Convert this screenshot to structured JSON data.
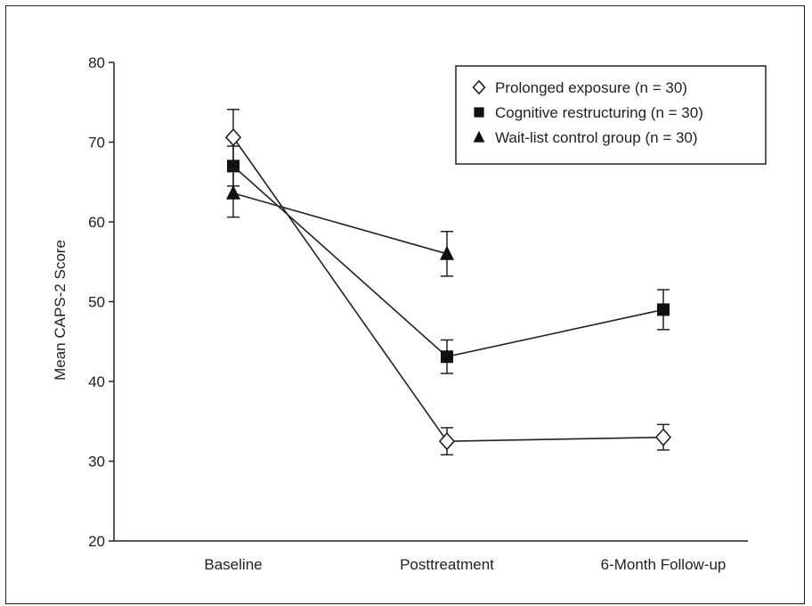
{
  "chart_data": {
    "type": "line",
    "title": "",
    "xlabel": "",
    "ylabel": "Mean CAPS-2 Score",
    "ylim": [
      20,
      80
    ],
    "yticks": [
      20,
      30,
      40,
      50,
      60,
      70,
      80
    ],
    "categories": [
      "Baseline",
      "Posttreatment",
      "6-Month Follow-up"
    ],
    "grid": false,
    "legend_position": "top-right",
    "series": [
      {
        "name": "Prolonged exposure (n = 30)",
        "marker": "open-diamond",
        "values": [
          70.6,
          32.5,
          33.0
        ],
        "error": [
          3.5,
          1.7,
          1.6
        ]
      },
      {
        "name": "Cognitive restructuring (n = 30)",
        "marker": "filled-square",
        "values": [
          67.0,
          43.1,
          49.0
        ],
        "error": [
          2.5,
          2.1,
          2.5
        ]
      },
      {
        "name": "Wait-list control group (n = 30)",
        "marker": "filled-triangle",
        "values": [
          63.6,
          56.0,
          null
        ],
        "error": [
          3.0,
          2.8,
          null
        ]
      }
    ],
    "colors": {
      "line": "#222222",
      "marker_fill": "#111111",
      "background": "#ffffff"
    }
  }
}
